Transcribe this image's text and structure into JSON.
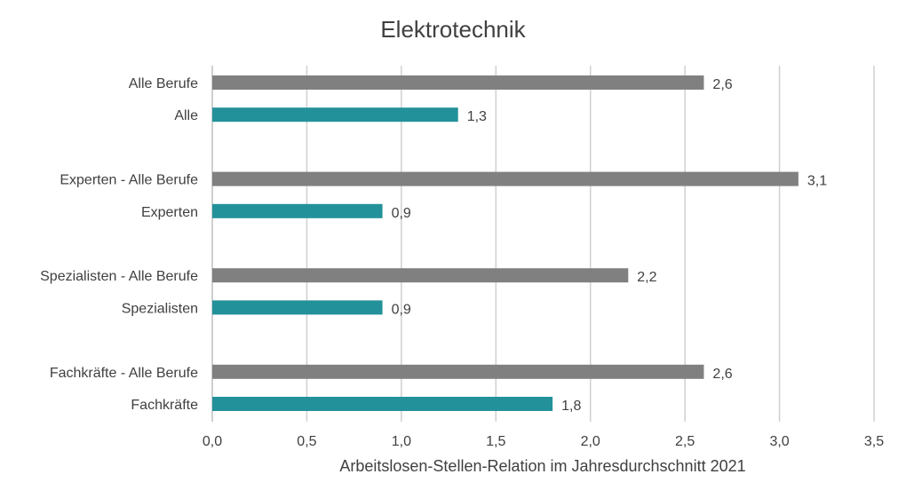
{
  "chart_data": {
    "type": "bar",
    "orientation": "horizontal",
    "title": "Elektrotechnik",
    "xlabel": "Arbeitslosen-Stellen-Relation im Jahresdurchschnitt 2021",
    "ylabel": "",
    "xlim": [
      0,
      3.5
    ],
    "x_ticks": [
      0.0,
      0.5,
      1.0,
      1.5,
      2.0,
      2.5,
      3.0,
      3.5
    ],
    "x_tick_labels": [
      "0,0",
      "0,5",
      "1,0",
      "1,5",
      "2,0",
      "2,5",
      "3,0",
      "3,5"
    ],
    "grid": true,
    "legend": "none",
    "colors": {
      "all_occupations": "#808080",
      "electrical": "#23919a"
    },
    "categories": [
      "Alle Berufe",
      "Alle",
      "Experten - Alle Berufe",
      "Experten",
      "Spezialisten - Alle Berufe",
      "Spezialisten",
      "Fachkräfte - Alle Berufe",
      "Fachkräfte"
    ],
    "values": [
      2.6,
      1.3,
      3.1,
      0.9,
      2.2,
      0.9,
      2.6,
      1.8
    ],
    "value_labels": [
      "2,6",
      "1,3",
      "3,1",
      "0,9",
      "2,2",
      "0,9",
      "2,6",
      "1,8"
    ],
    "bar_color_keys": [
      "all_occupations",
      "electrical",
      "all_occupations",
      "electrical",
      "all_occupations",
      "electrical",
      "all_occupations",
      "electrical"
    ]
  }
}
